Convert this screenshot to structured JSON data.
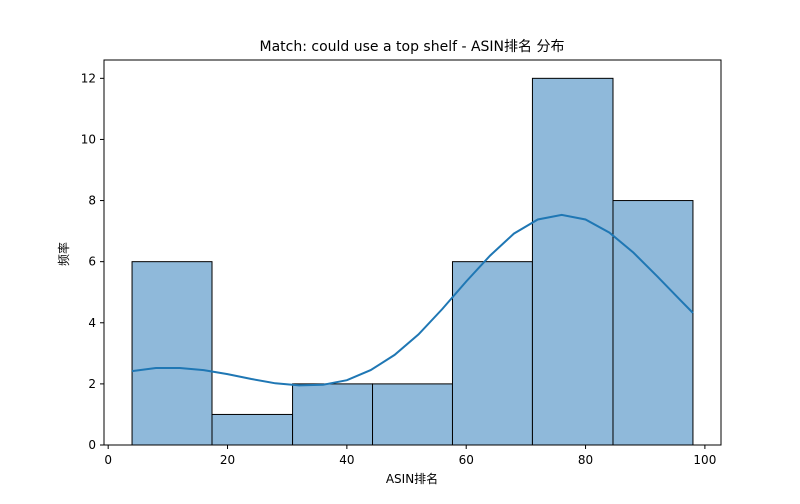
{
  "chart_data": {
    "type": "histogram",
    "title": "Match: could use a top shelf - ASIN排名 分布",
    "xlabel": "ASIN排名",
    "ylabel": "频率",
    "xlim": [
      -0.7,
      102.7
    ],
    "ylim": [
      0,
      12.6
    ],
    "xticks": [
      0,
      20,
      40,
      60,
      80,
      100
    ],
    "yticks": [
      0,
      2,
      4,
      6,
      8,
      10,
      12
    ],
    "bins": [
      {
        "x0": 4.0,
        "x1": 17.4,
        "count": 6
      },
      {
        "x0": 17.4,
        "x1": 30.9,
        "count": 1
      },
      {
        "x0": 30.9,
        "x1": 44.3,
        "count": 2
      },
      {
        "x0": 44.3,
        "x1": 57.7,
        "count": 2
      },
      {
        "x0": 57.7,
        "x1": 71.1,
        "count": 6
      },
      {
        "x0": 71.1,
        "x1": 84.6,
        "count": 12
      },
      {
        "x0": 84.6,
        "x1": 98.0,
        "count": 8
      }
    ],
    "kde": {
      "x": [
        4,
        8,
        12,
        16,
        20,
        24,
        28,
        32,
        36,
        40,
        44,
        48,
        52,
        56,
        60,
        64,
        68,
        72,
        76,
        80,
        84,
        88,
        92,
        96,
        98
      ],
      "y": [
        2.42,
        2.52,
        2.52,
        2.45,
        2.32,
        2.16,
        2.02,
        1.95,
        1.97,
        2.12,
        2.45,
        2.95,
        3.62,
        4.45,
        5.35,
        6.2,
        6.92,
        7.38,
        7.53,
        7.38,
        6.95,
        6.3,
        5.52,
        4.72,
        4.32
      ]
    },
    "colors": {
      "bar_fill": "#8fb9da",
      "bar_edge": "#000000",
      "kde_line": "#1f77b4"
    },
    "grid": false,
    "legend": "none"
  }
}
